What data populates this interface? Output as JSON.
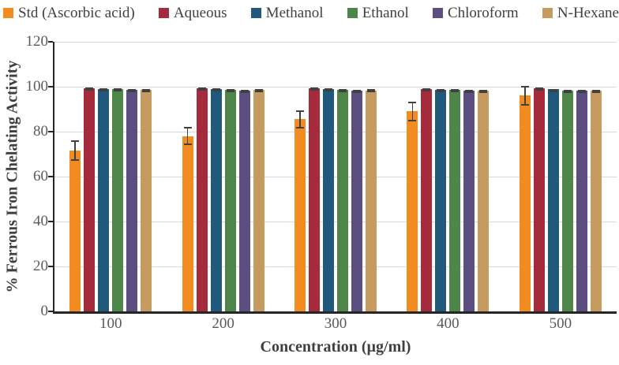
{
  "chart_data": {
    "type": "bar",
    "title": "",
    "xlabel": "Concentration (µg/ml)",
    "ylabel": "% Ferrous Iron Chelating Activity",
    "categories": [
      "100",
      "200",
      "300",
      "400",
      "500"
    ],
    "ylim": [
      0,
      120
    ],
    "yticks": [
      0,
      20,
      40,
      60,
      80,
      100,
      120
    ],
    "grid": true,
    "legend_position": "top",
    "series": [
      {
        "name": "Std (Ascorbic acid)",
        "color": "#F28C21",
        "values": [
          71.5,
          78,
          85.5,
          89,
          96
        ],
        "errors": [
          4.5,
          4,
          4,
          4.5,
          4.5
        ]
      },
      {
        "name": "Aqueous",
        "color": "#A42A3C",
        "values": [
          99.3,
          99.3,
          99.2,
          99.1,
          99.2
        ],
        "errors": [
          0.3,
          0.3,
          0.3,
          0.3,
          0.3
        ]
      },
      {
        "name": "Methanol",
        "color": "#21597C",
        "values": [
          99.1,
          99.0,
          98.9,
          98.7,
          98.8
        ],
        "errors": [
          0.3,
          0.3,
          0.3,
          0.3,
          0.3
        ]
      },
      {
        "name": "Ethanol",
        "color": "#4E8548",
        "values": [
          98.9,
          98.7,
          98.7,
          98.5,
          98.4
        ],
        "errors": [
          0.3,
          0.3,
          0.3,
          0.3,
          0.3
        ]
      },
      {
        "name": "Chloroform",
        "color": "#5C4E80",
        "values": [
          98.5,
          98.4,
          98.3,
          98.3,
          98.2
        ],
        "errors": [
          0.3,
          0.3,
          0.3,
          0.3,
          0.3
        ]
      },
      {
        "name": "N-Hexane",
        "color": "#C59B60",
        "values": [
          98.6,
          98.5,
          98.4,
          98.3,
          98.2
        ],
        "errors": [
          0.4,
          0.4,
          0.4,
          0.4,
          0.4
        ]
      }
    ],
    "style": {
      "grid_color": "#D9D9D9",
      "axis_color": "#262626",
      "error_bar_color": "#404040",
      "tick_label_color": "#595959",
      "title_color": "#3F3F3F"
    }
  }
}
